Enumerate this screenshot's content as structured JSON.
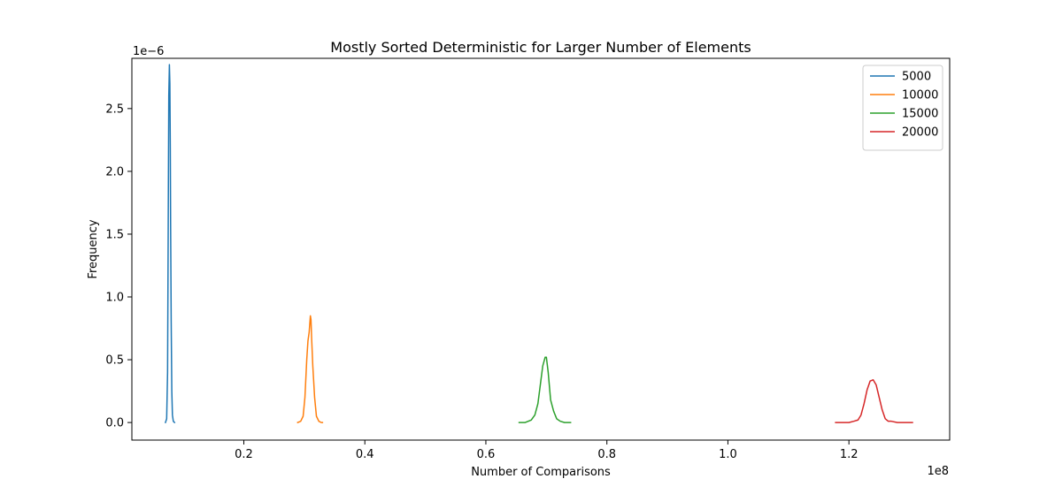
{
  "chart_data": {
    "type": "line",
    "title": "Mostly Sorted Deterministic for Larger Number of Elements",
    "xlabel": "Number of Comparisons",
    "ylabel": "Frequency",
    "x_offset_label": "1e8",
    "y_offset_label": "1e−6",
    "xlim": [
      0.015,
      1.3665
    ],
    "ylim": [
      -1.4e-07,
      2.9e-06
    ],
    "x_ticks": [
      0.2,
      0.4,
      0.6,
      0.8,
      1.0,
      1.2
    ],
    "x_tick_labels": [
      "0.2",
      "0.4",
      "0.6",
      "0.8",
      "1.0",
      "1.2"
    ],
    "y_ticks": [
      0.0,
      5e-07,
      1e-06,
      1.5e-06,
      2e-06,
      2.5e-06
    ],
    "y_tick_labels": [
      "0.0",
      "0.5",
      "1.0",
      "1.5",
      "2.0",
      "2.5"
    ],
    "grid": false,
    "legend_position": "top-right",
    "series": [
      {
        "name": "5000",
        "color": "#1f77b4",
        "x": [
          0.0705,
          0.0725,
          0.074,
          0.075,
          0.076,
          0.077,
          0.0778,
          0.0785,
          0.079,
          0.08,
          0.081,
          0.082,
          0.0835,
          0.0855
        ],
        "y": [
          0.0,
          3e-08,
          4e-07,
          1.5e-06,
          2.6e-06,
          2.85e-06,
          2.7e-06,
          2.2e-06,
          1.6e-06,
          8e-07,
          2.5e-07,
          6e-08,
          1e-08,
          0.0
        ]
      },
      {
        "name": "10000",
        "color": "#ff7f0e",
        "x": [
          0.289,
          0.294,
          0.298,
          0.301,
          0.304,
          0.306,
          0.308,
          0.31,
          0.311,
          0.312,
          0.314,
          0.317,
          0.32,
          0.324,
          0.328,
          0.33
        ],
        "y": [
          0.0,
          1e-08,
          5e-08,
          2e-07,
          5e-07,
          6.5e-07,
          7.2e-07,
          8.5e-07,
          8.2e-07,
          6.8e-07,
          4.5e-07,
          2e-07,
          5e-08,
          1e-08,
          0.0,
          0.0
        ]
      },
      {
        "name": "15000",
        "color": "#2ca02c",
        "x": [
          0.655,
          0.665,
          0.675,
          0.681,
          0.686,
          0.69,
          0.694,
          0.698,
          0.7,
          0.703,
          0.707,
          0.712,
          0.717,
          0.723,
          0.73,
          0.74
        ],
        "y": [
          0.0,
          0.0,
          2e-08,
          6e-08,
          1.5e-07,
          3e-07,
          4.5e-07,
          5.2e-07,
          5.2e-07,
          4e-07,
          1.8e-07,
          9e-08,
          3e-08,
          1e-08,
          0.0,
          0.0
        ]
      },
      {
        "name": "20000",
        "color": "#d62728",
        "x": [
          1.178,
          1.19,
          1.2,
          1.208,
          1.215,
          1.22,
          1.225,
          1.23,
          1.235,
          1.24,
          1.245,
          1.25,
          1.255,
          1.26,
          1.265,
          1.27,
          1.28,
          1.29,
          1.305
        ],
        "y": [
          0.0,
          0.0,
          0.0,
          1e-08,
          2e-08,
          6e-08,
          1.5e-07,
          2.6e-07,
          3.3e-07,
          3.4e-07,
          3e-07,
          2e-07,
          1e-07,
          3e-08,
          1e-08,
          1e-08,
          0.0,
          0.0,
          0.0
        ]
      }
    ]
  }
}
